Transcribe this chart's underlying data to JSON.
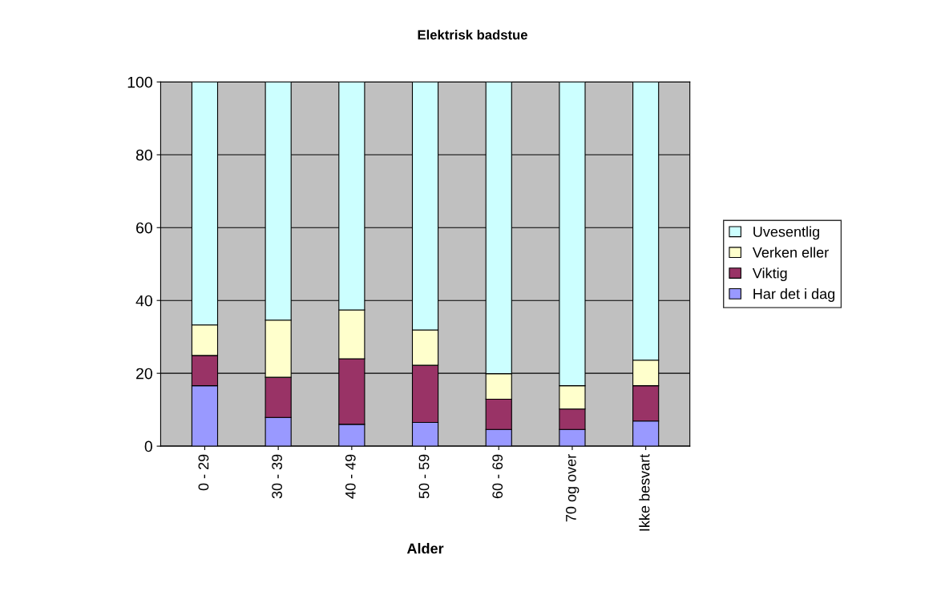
{
  "chart_data": {
    "type": "bar",
    "title": "Elektrisk badstue",
    "xlabel": "Alder",
    "stacked": true,
    "categories": [
      "0 - 29",
      "30 - 39",
      "40 - 49",
      "50 - 59",
      "60 - 69",
      "70 og over",
      "Ikke besvart"
    ],
    "series": [
      {
        "name": "Har det i dag",
        "color": "#9999ff",
        "values": [
          16.6,
          7.9,
          6.0,
          6.5,
          4.6,
          4.6,
          6.9
        ]
      },
      {
        "name": "Viktig",
        "color": "#993366",
        "values": [
          8.3,
          11.0,
          18.0,
          15.7,
          8.3,
          5.6,
          9.7
        ]
      },
      {
        "name": "Verken eller",
        "color": "#ffffcc",
        "values": [
          8.4,
          15.7,
          13.4,
          9.7,
          7.0,
          6.4,
          7.0
        ]
      },
      {
        "name": "Uvesentlig",
        "color": "#ccffff",
        "values": [
          66.7,
          65.4,
          62.6,
          68.1,
          80.1,
          83.4,
          76.4
        ]
      }
    ],
    "ylim": [
      0,
      100
    ],
    "yticks": [
      0,
      20,
      40,
      60,
      80,
      100
    ],
    "grid": "y",
    "legend": "right"
  }
}
